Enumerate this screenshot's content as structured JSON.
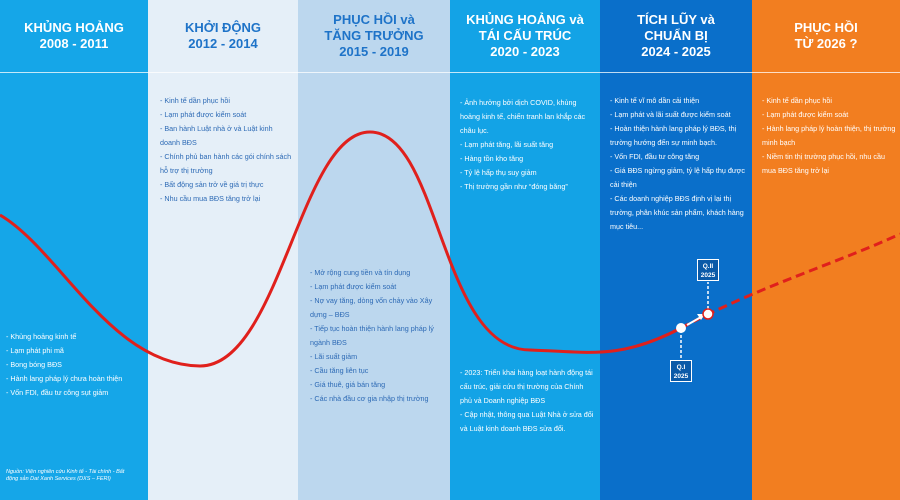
{
  "phases": [
    {
      "title": "KHỦNG HOẢNG",
      "period": "2008 - 2011",
      "bullets": [
        "Khủng hoảng kinh tế",
        "Lạm phát phi mã",
        "Bong bóng BĐS",
        "Hành lang pháp lý chưa hoàn thiện",
        "Vốn FDI, đầu tư công sụt giảm"
      ]
    },
    {
      "title": "KHỞI ĐỘNG",
      "period": "2012 - 2014",
      "bullets": [
        "Kinh tế dần phục hồi",
        "Lạm phát được kiểm soát",
        "Ban hành Luật nhà ở và Luật kinh doanh BĐS",
        "Chính phủ ban hành các gói chính sách hỗ trợ thị trường",
        "Bất động sản trở về giá trị thực",
        "Nhu cầu mua BĐS tăng trở lại"
      ]
    },
    {
      "title": "PHỤC HỒI và",
      "title2": "TĂNG TRƯỞNG",
      "period": "2015 - 2019",
      "bullets": [
        "Mở rộng cung tiền và tín dụng",
        "Lạm phát được kiểm soát",
        "Nợ vay tăng, dòng vốn chảy vào Xây dựng – BĐS",
        "Tiếp tục hoàn thiện hành lang pháp lý ngành BĐS",
        "Lãi suất giảm",
        "Cầu tăng liên tục",
        "Giá thuê, giá bán tăng",
        "Các nhà đầu cơ gia nhập thị trường"
      ]
    },
    {
      "title": "KHỦNG HOẢNG và",
      "title2": "TÁI CẤU TRÚC",
      "period": "2020 - 2023",
      "bullets": [
        "Ảnh hưởng bởi dịch COVID, khủng hoảng kinh tế, chiến tranh lan khắp các châu lục.",
        "Lạm phát tăng, lãi suất tăng",
        "Hàng tồn kho tăng",
        "Tỷ lệ hấp thụ suy giảm",
        "Thị trường gần như “đóng băng”"
      ],
      "bullets2": [
        "2023: Triển khai hàng loạt hành động tái cấu trúc, giải cứu thị trường của Chính phủ và Doanh nghiệp BĐS",
        "Cập nhật, thông qua Luật Nhà ở sửa đổi và Luật kinh doanh BĐS sửa đổi."
      ]
    },
    {
      "title": "TÍCH LŨY và",
      "title2": "CHUẨN BỊ",
      "period": "2024 - 2025",
      "bullets": [
        "Kinh tế vĩ mô dần cải thiện",
        "Lạm phát và lãi suất được kiểm soát",
        "Hoàn thiện hành lang pháp lý BĐS, thị trường hướng đến sự minh bạch.",
        "Vốn FDI, đầu tư công tăng",
        "Giá BĐS ngừng giảm, tỷ lệ hấp thụ được cải thiện",
        "Các doanh nghiệp BĐS định vị lại thị trường, phân khúc sản phẩm, khách hàng mục tiêu..."
      ]
    },
    {
      "title": "PHỤC HỒI",
      "period": "TỪ 2026 ?",
      "bullets": [
        "Kinh tế dần phục hồi",
        "Lạm phát được kiểm soát",
        "Hành lang pháp lý hoàn thiện, thị trường minh bạch",
        "Niềm tin thị trường phục hồi, nhu cầu mua BĐS tăng trở lại"
      ]
    }
  ],
  "markers": {
    "q1_line1": "Q.I",
    "q1_line2": "2025",
    "q2_line1": "Q.II",
    "q2_line2": "2025"
  },
  "source": "Nguồn: Viện nghiên cứu Kinh tế - Tài chính - Bất động sản Dat Xanh Services (DXS – FERI)",
  "colors": {
    "curve": "#e0201c",
    "col1": "#15a6e8",
    "col2": "#e5eff8",
    "col3": "#bcd7ee",
    "col4": "#13a3e6",
    "col5": "#0a6fca",
    "col6": "#f27e20"
  }
}
